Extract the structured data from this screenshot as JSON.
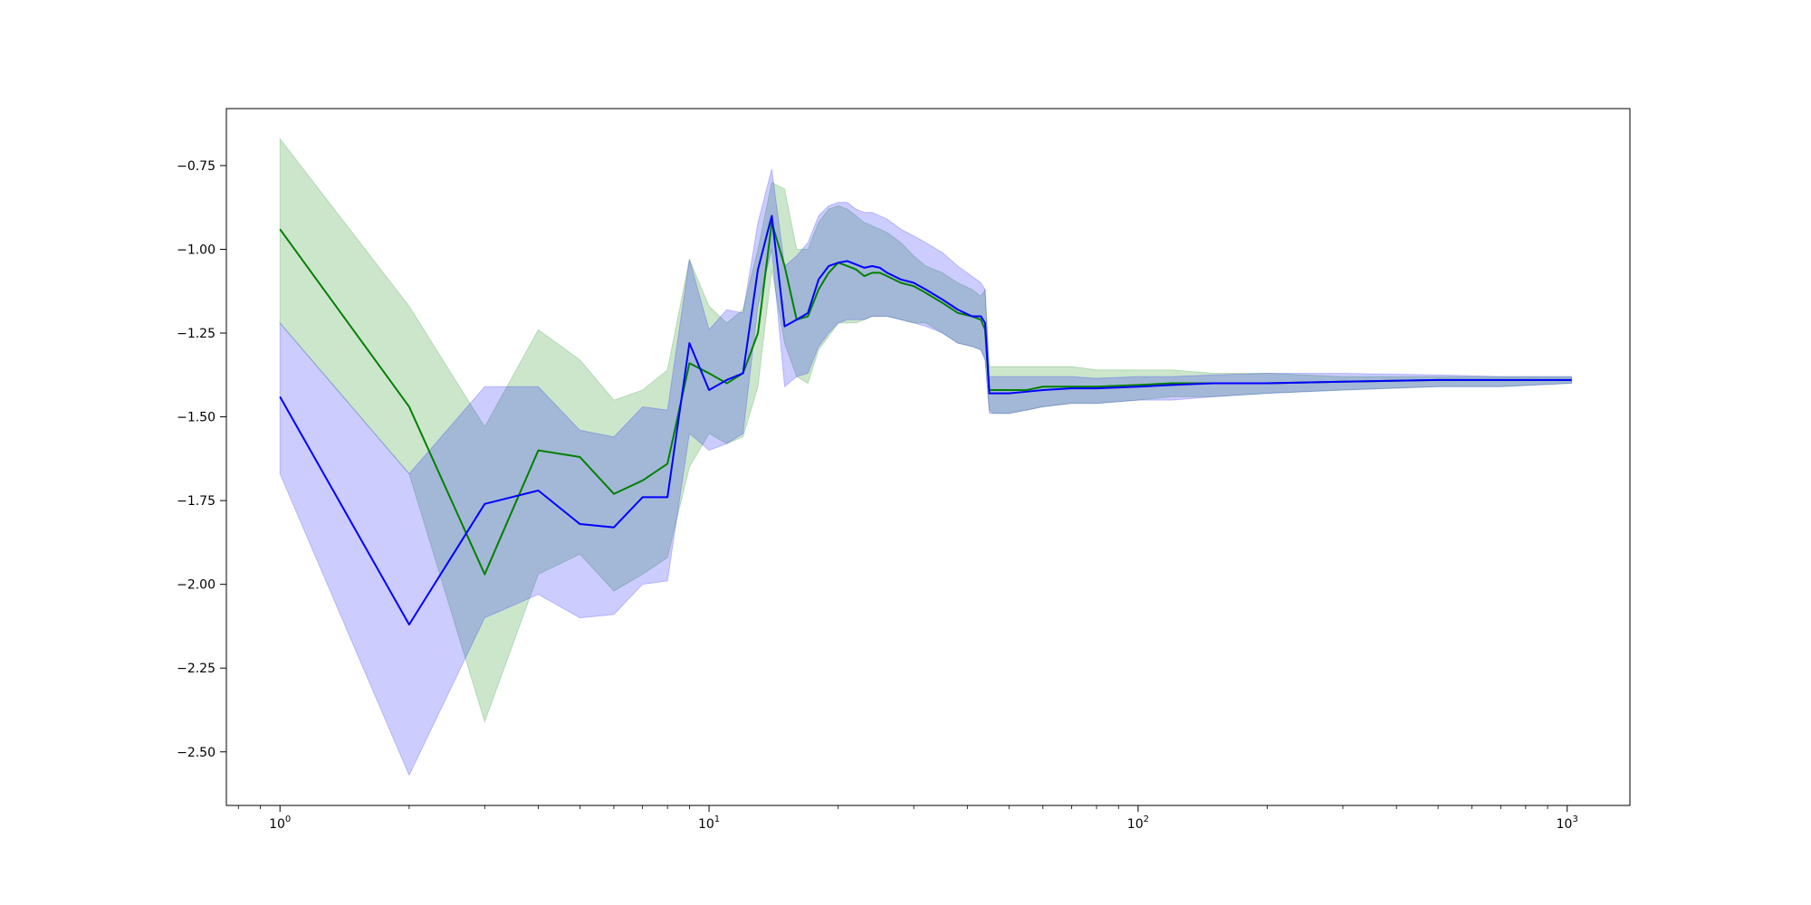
{
  "chart_data": {
    "type": "line",
    "title": "",
    "xlabel": "",
    "ylabel": "",
    "xscale": "log",
    "xlim": [
      0.75,
      1400
    ],
    "ylim": [
      -2.66,
      -0.58
    ],
    "grid": false,
    "legend": "none",
    "x_ticks": [
      {
        "value": 1,
        "base": "10",
        "exp": "0"
      },
      {
        "value": 10,
        "base": "10",
        "exp": "1"
      },
      {
        "value": 100,
        "base": "10",
        "exp": "2"
      },
      {
        "value": 1000,
        "base": "10",
        "exp": "3"
      }
    ],
    "y_ticks": [
      {
        "value": -0.75,
        "label": "−0.75"
      },
      {
        "value": -1.0,
        "label": "−1.00"
      },
      {
        "value": -1.25,
        "label": "−1.25"
      },
      {
        "value": -1.5,
        "label": "−1.50"
      },
      {
        "value": -1.75,
        "label": "−1.75"
      },
      {
        "value": -2.0,
        "label": "−2.00"
      },
      {
        "value": -2.25,
        "label": "−2.25"
      },
      {
        "value": -2.5,
        "label": "−2.50"
      }
    ],
    "series": [
      {
        "color": "#008000",
        "band_color": "#008000",
        "x": [
          1,
          2,
          3,
          4,
          5,
          6,
          7,
          8,
          9,
          10,
          11,
          12,
          13,
          14,
          15,
          16,
          17,
          18,
          19,
          20,
          21,
          22,
          23,
          24,
          25,
          26,
          28,
          30,
          32,
          35,
          38,
          41,
          43,
          44,
          45,
          46,
          50,
          55,
          60,
          70,
          80,
          100,
          120,
          150,
          200,
          300,
          500,
          700,
          1024
        ],
        "y": [
          -0.94,
          -1.47,
          -1.97,
          -1.6,
          -1.62,
          -1.73,
          -1.69,
          -1.64,
          -1.34,
          -1.37,
          -1.4,
          -1.37,
          -1.25,
          -0.92,
          -1.05,
          -1.21,
          -1.2,
          -1.12,
          -1.07,
          -1.04,
          -1.05,
          -1.06,
          -1.08,
          -1.07,
          -1.07,
          -1.08,
          -1.1,
          -1.11,
          -1.13,
          -1.16,
          -1.19,
          -1.2,
          -1.21,
          -1.24,
          -1.42,
          -1.42,
          -1.42,
          -1.42,
          -1.41,
          -1.41,
          -1.41,
          -1.405,
          -1.4,
          -1.4,
          -1.4,
          -1.395,
          -1.39,
          -1.39,
          -1.39
        ],
        "upper": [
          -0.67,
          -1.17,
          -1.53,
          -1.24,
          -1.33,
          -1.45,
          -1.42,
          -1.36,
          -1.03,
          -1.17,
          -1.22,
          -1.18,
          -1.0,
          -0.8,
          -0.82,
          -1.0,
          -1.0,
          -0.92,
          -0.88,
          -0.87,
          -0.88,
          -0.9,
          -0.92,
          -0.93,
          -0.94,
          -0.95,
          -0.98,
          -1.02,
          -1.05,
          -1.07,
          -1.1,
          -1.12,
          -1.14,
          -1.12,
          -1.35,
          -1.35,
          -1.35,
          -1.35,
          -1.35,
          -1.35,
          -1.36,
          -1.36,
          -1.36,
          -1.37,
          -1.37,
          -1.38,
          -1.38,
          -1.38,
          -1.38
        ],
        "lower": [
          -1.22,
          -1.67,
          -2.41,
          -1.97,
          -1.91,
          -2.02,
          -1.97,
          -1.92,
          -1.65,
          -1.55,
          -1.58,
          -1.56,
          -1.41,
          -1.06,
          -1.28,
          -1.38,
          -1.4,
          -1.3,
          -1.26,
          -1.22,
          -1.22,
          -1.22,
          -1.21,
          -1.2,
          -1.2,
          -1.2,
          -1.21,
          -1.22,
          -1.22,
          -1.25,
          -1.28,
          -1.29,
          -1.3,
          -1.33,
          -1.48,
          -1.49,
          -1.49,
          -1.48,
          -1.47,
          -1.46,
          -1.46,
          -1.45,
          -1.44,
          -1.44,
          -1.43,
          -1.42,
          -1.41,
          -1.41,
          -1.4
        ]
      },
      {
        "color": "#0000ff",
        "band_color": "#0000ff",
        "x": [
          1,
          2,
          3,
          4,
          5,
          6,
          7,
          8,
          9,
          10,
          11,
          12,
          13,
          14,
          15,
          16,
          17,
          18,
          19,
          20,
          21,
          22,
          23,
          24,
          25,
          26,
          28,
          30,
          32,
          35,
          38,
          41,
          43,
          44,
          45,
          46,
          50,
          55,
          60,
          70,
          80,
          100,
          120,
          150,
          200,
          300,
          500,
          700,
          1024
        ],
        "y": [
          -1.44,
          -2.12,
          -1.76,
          -1.72,
          -1.82,
          -1.83,
          -1.74,
          -1.74,
          -1.28,
          -1.42,
          -1.39,
          -1.37,
          -1.06,
          -0.9,
          -1.23,
          -1.21,
          -1.19,
          -1.09,
          -1.05,
          -1.04,
          -1.035,
          -1.045,
          -1.055,
          -1.05,
          -1.055,
          -1.07,
          -1.09,
          -1.1,
          -1.12,
          -1.15,
          -1.18,
          -1.2,
          -1.2,
          -1.22,
          -1.43,
          -1.43,
          -1.43,
          -1.425,
          -1.42,
          -1.415,
          -1.415,
          -1.41,
          -1.405,
          -1.4,
          -1.4,
          -1.395,
          -1.39,
          -1.39,
          -1.39
        ],
        "upper": [
          -1.22,
          -1.67,
          -1.41,
          -1.41,
          -1.54,
          -1.56,
          -1.47,
          -1.48,
          -1.03,
          -1.24,
          -1.18,
          -1.19,
          -0.92,
          -0.76,
          -1.05,
          -1.02,
          -0.98,
          -0.9,
          -0.87,
          -0.86,
          -0.86,
          -0.88,
          -0.89,
          -0.89,
          -0.9,
          -0.91,
          -0.94,
          -0.96,
          -0.98,
          -1.01,
          -1.05,
          -1.08,
          -1.1,
          -1.12,
          -1.38,
          -1.38,
          -1.38,
          -1.38,
          -1.38,
          -1.38,
          -1.385,
          -1.38,
          -1.38,
          -1.375,
          -1.37,
          -1.37,
          -1.375,
          -1.38,
          -1.38
        ],
        "lower": [
          -1.67,
          -2.57,
          -2.1,
          -2.03,
          -2.1,
          -2.09,
          -2.0,
          -1.99,
          -1.55,
          -1.6,
          -1.58,
          -1.55,
          -1.17,
          -1.0,
          -1.41,
          -1.38,
          -1.37,
          -1.29,
          -1.25,
          -1.22,
          -1.21,
          -1.21,
          -1.21,
          -1.2,
          -1.2,
          -1.2,
          -1.21,
          -1.22,
          -1.23,
          -1.25,
          -1.28,
          -1.29,
          -1.3,
          -1.33,
          -1.49,
          -1.49,
          -1.49,
          -1.48,
          -1.47,
          -1.46,
          -1.46,
          -1.45,
          -1.45,
          -1.44,
          -1.43,
          -1.42,
          -1.41,
          -1.41,
          -1.4
        ]
      }
    ]
  }
}
